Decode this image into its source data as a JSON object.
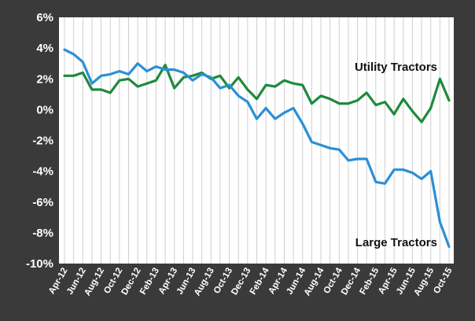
{
  "chart_data": {
    "type": "line",
    "title": "",
    "xlabel": "",
    "ylabel": "",
    "ylim": [
      -10,
      6
    ],
    "yticks": [
      "6%",
      "4%",
      "2%",
      "0%",
      "-2%",
      "-4%",
      "-6%",
      "-8%",
      "-10%"
    ],
    "ytick_values": [
      6,
      4,
      2,
      0,
      -2,
      -4,
      -6,
      -8,
      -10
    ],
    "grid": "vertical lines",
    "x": [
      "Apr-12",
      "May-12",
      "Jun-12",
      "Jul-12",
      "Aug-12",
      "Sep-12",
      "Oct-12",
      "Nov-12",
      "Dec-12",
      "Jan-13",
      "Feb-13",
      "Mar-13",
      "Apr-13",
      "May-13",
      "Jun-13",
      "Jul-13",
      "Aug-13",
      "Sep-13",
      "Oct-13",
      "Nov-13",
      "Dec-13",
      "Jan-14",
      "Feb-14",
      "Mar-14",
      "Apr-14",
      "May-14",
      "Jun-14",
      "Jul-14",
      "Aug-14",
      "Sep-14",
      "Oct-14",
      "Nov-14",
      "Dec-14",
      "Jan-15",
      "Feb-15",
      "Mar-15",
      "Apr-15",
      "May-15",
      "Jun-15",
      "Jul-15",
      "Aug-15",
      "Sep-15",
      "Oct-15"
    ],
    "xtick_labels": [
      "Apr-12",
      "Jun-12",
      "Aug-12",
      "Oct-12",
      "Dec-12",
      "Feb-13",
      "Apr-13",
      "Jun-13",
      "Aug-13",
      "Oct-13",
      "Dec-13",
      "Feb-14",
      "Apr-14",
      "Jun-14",
      "Aug-14",
      "Oct-14",
      "Dec-14",
      "Feb-15",
      "Apr-15",
      "Jun-15",
      "Aug-15",
      "Oct-15"
    ],
    "series": [
      {
        "name": "Utility Tractors",
        "color": "#1e8a3c",
        "values": [
          2.2,
          2.2,
          2.4,
          1.3,
          1.3,
          1.1,
          1.9,
          2.0,
          1.5,
          1.7,
          1.9,
          2.9,
          1.4,
          2.1,
          2.2,
          2.4,
          2.0,
          2.2,
          1.4,
          2.1,
          1.3,
          0.7,
          1.6,
          1.5,
          1.9,
          1.7,
          1.6,
          0.4,
          0.9,
          0.7,
          0.4,
          0.4,
          0.6,
          1.1,
          0.3,
          0.5,
          -0.3,
          0.7,
          -0.1,
          -0.8,
          0.1,
          2.0,
          0.6
        ]
      },
      {
        "name": "Large Tractors",
        "color": "#2b8fd6",
        "values": [
          3.9,
          3.6,
          3.1,
          1.7,
          2.2,
          2.3,
          2.5,
          2.3,
          3.0,
          2.5,
          2.8,
          2.6,
          2.6,
          2.4,
          1.9,
          2.3,
          2.1,
          1.4,
          1.6,
          0.9,
          0.5,
          -0.6,
          0.1,
          -0.6,
          -0.2,
          0.1,
          -0.9,
          -2.1,
          -2.3,
          -2.5,
          -2.6,
          -3.3,
          -3.2,
          -3.2,
          -4.7,
          -4.8,
          -3.9,
          -3.9,
          -4.1,
          -4.5,
          -4.0,
          -7.3,
          -8.9
        ]
      }
    ]
  }
}
